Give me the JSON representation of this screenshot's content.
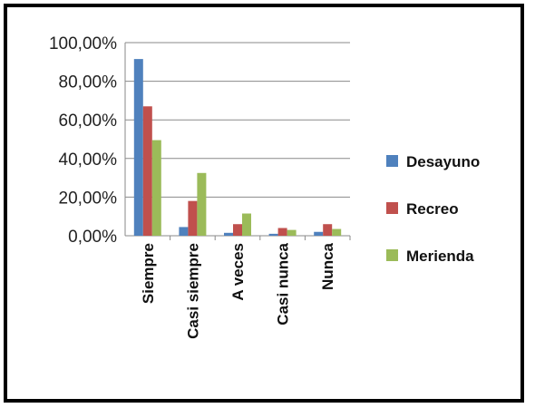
{
  "chart_data": {
    "type": "bar",
    "title": "",
    "xlabel": "",
    "ylabel": "",
    "categories": [
      "Siempre",
      "Casi siempre",
      "A veces",
      "Casi nunca",
      "Nunca"
    ],
    "series": [
      {
        "name": "Desayuno",
        "color": "#4F81BD",
        "values": [
          91.5,
          4.5,
          1.5,
          1.0,
          2.0
        ]
      },
      {
        "name": "Recreo",
        "color": "#C0504D",
        "values": [
          67.0,
          18.0,
          6.0,
          4.0,
          6.0
        ]
      },
      {
        "name": "Merienda",
        "color": "#9BBB59",
        "values": [
          49.5,
          32.5,
          11.5,
          3.0,
          3.5
        ]
      }
    ],
    "ylim": [
      0,
      100
    ],
    "yticks": [
      {
        "value": 0,
        "label": "0,00%"
      },
      {
        "value": 20,
        "label": "20,00%"
      },
      {
        "value": 40,
        "label": "40,00%"
      },
      {
        "value": 60,
        "label": "60,00%"
      },
      {
        "value": 80,
        "label": "80,00%"
      },
      {
        "value": 100,
        "label": "100,00%"
      }
    ],
    "grid": true,
    "legend_position": "right"
  }
}
